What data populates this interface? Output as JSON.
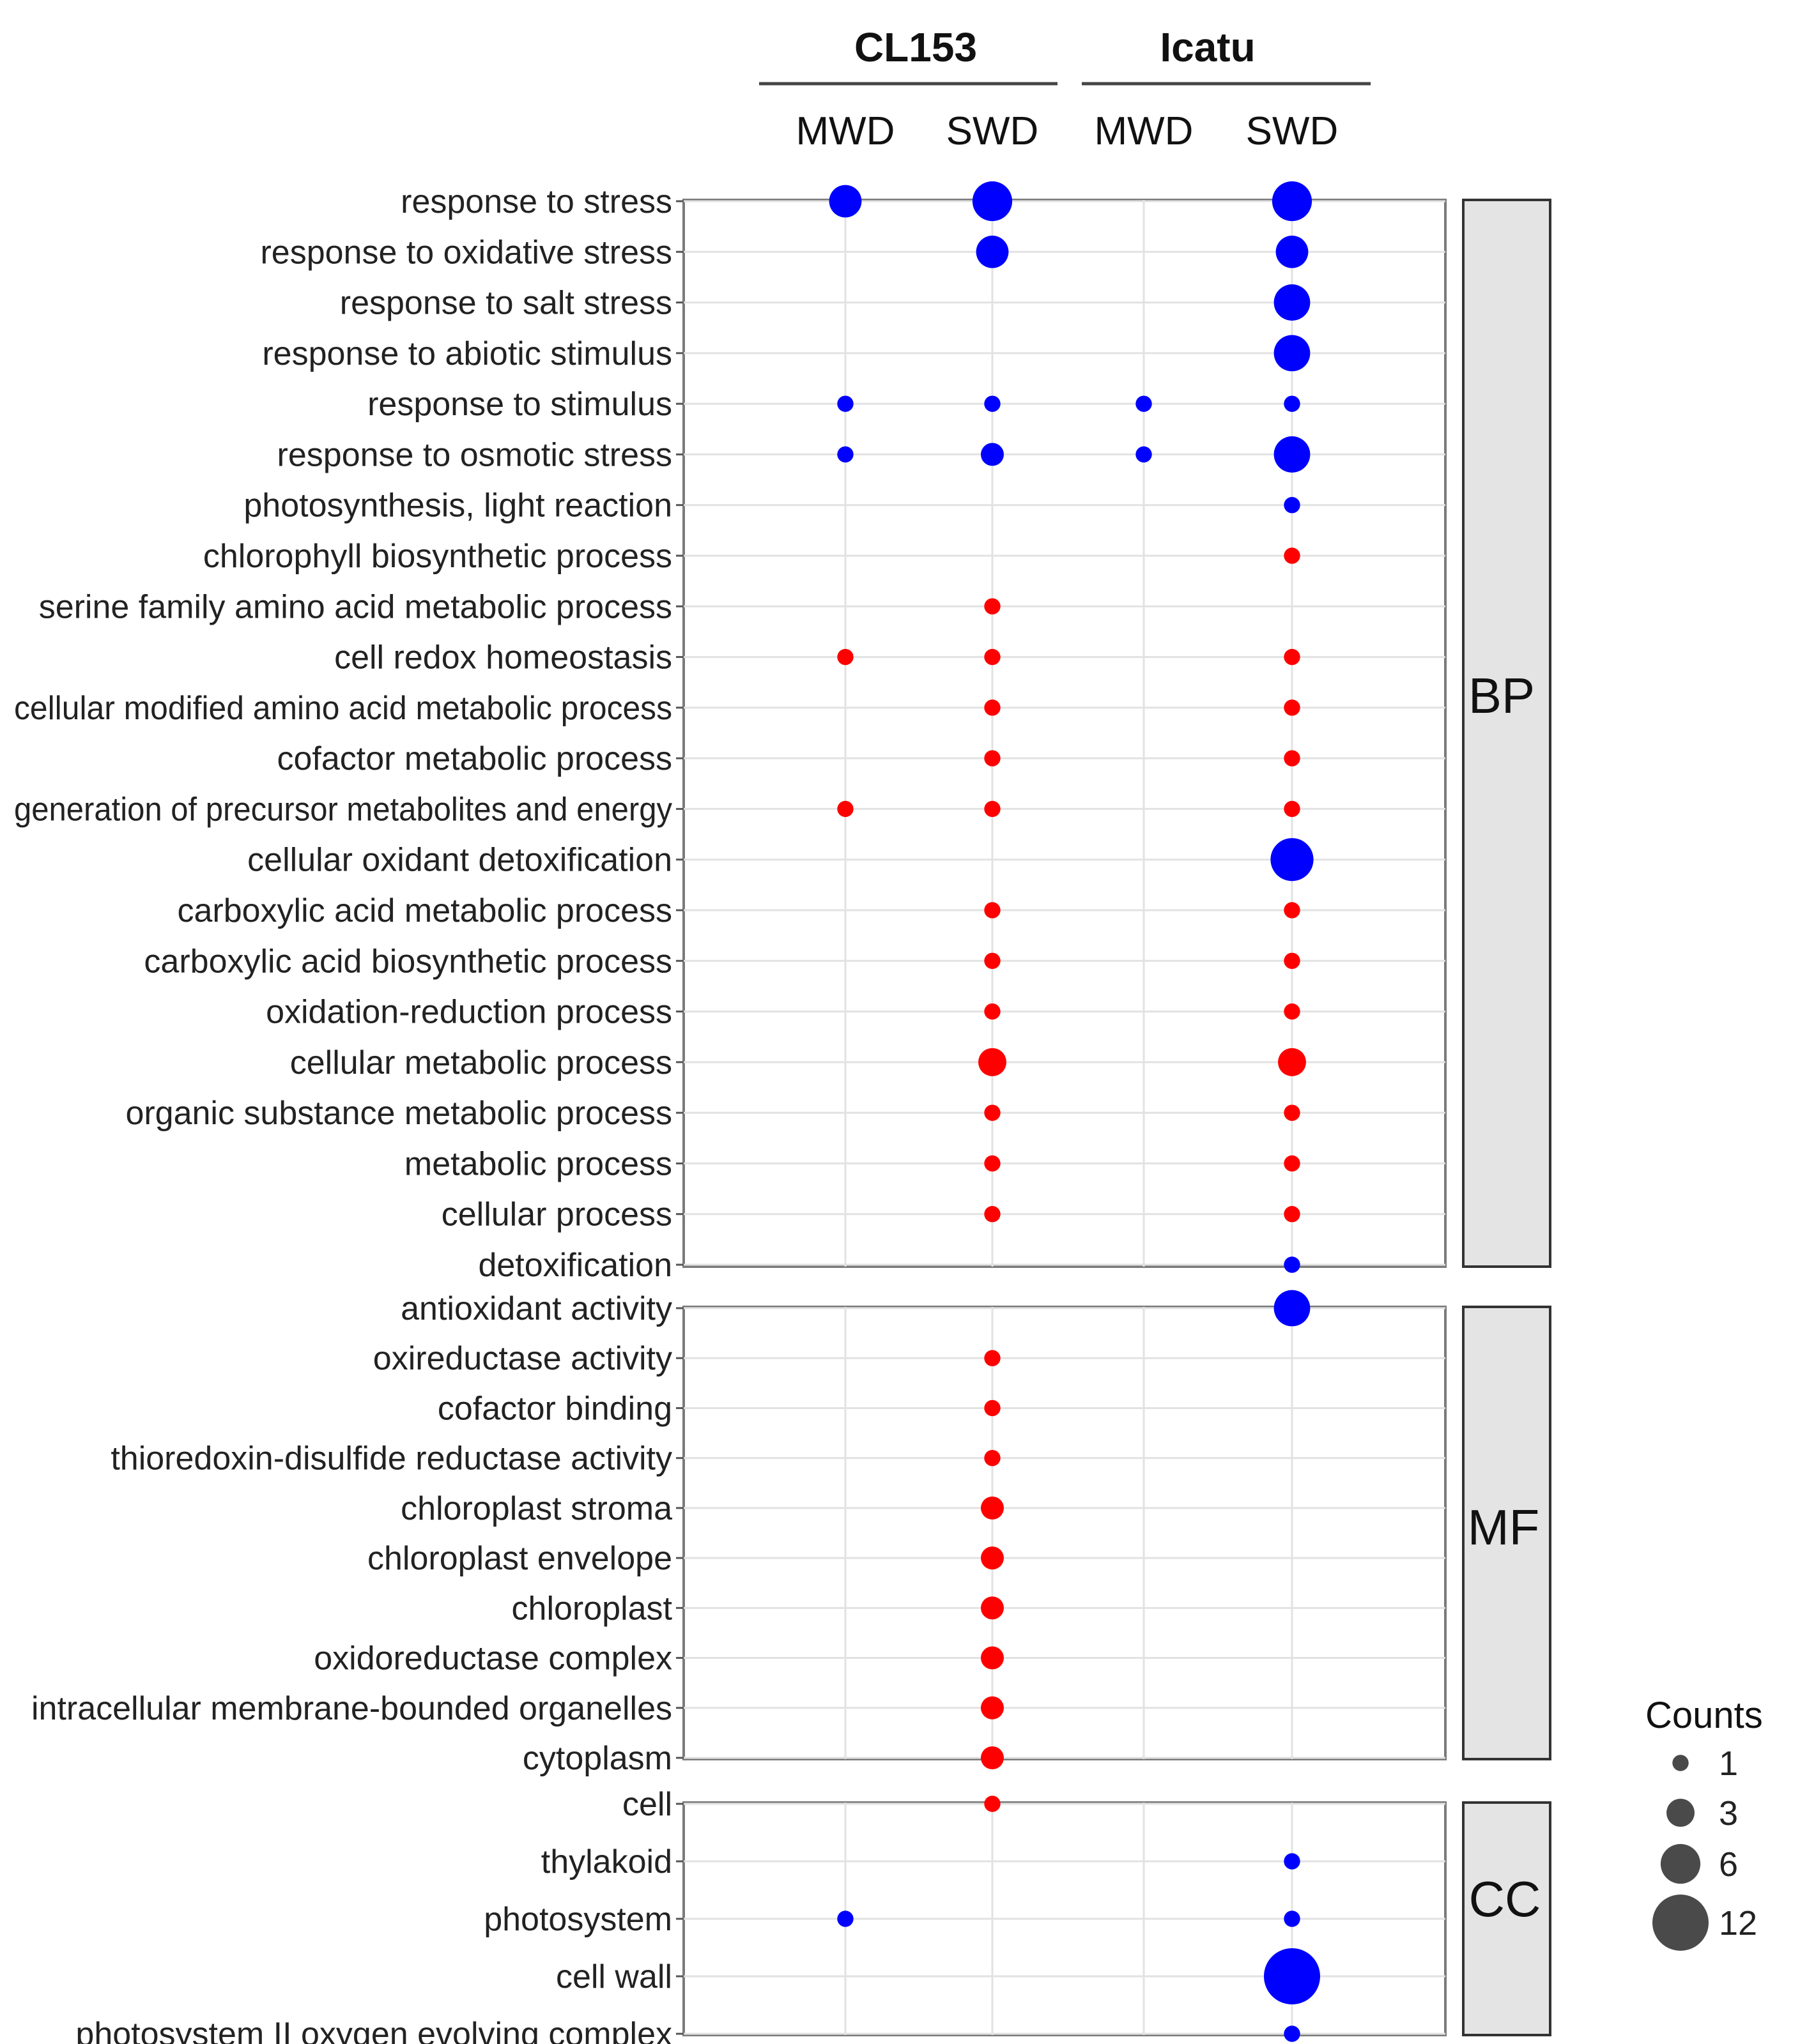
{
  "chart_data": {
    "type": "scatter",
    "title": "",
    "xlabel": "",
    "ylabel": "",
    "groups": [
      {
        "name": "CL153",
        "conditions": [
          "MWD",
          "SWD"
        ]
      },
      {
        "name": "Icatu",
        "conditions": [
          "MWD",
          "SWD"
        ]
      }
    ],
    "columns": [
      "CL153 MWD",
      "CL153 SWD",
      "Icatu MWD",
      "Icatu SWD"
    ],
    "column_labels": [
      "MWD",
      "SWD",
      "MWD",
      "SWD"
    ],
    "legend": {
      "title": "Counts",
      "entries": [
        {
          "label": "1",
          "value": 1
        },
        {
          "label": "3",
          "value": 3
        },
        {
          "label": "6",
          "value": 6
        },
        {
          "label": "12",
          "value": 12
        }
      ],
      "position": "right"
    },
    "colors": {
      "up": "#ff0000",
      "down": "#0000ff"
    },
    "facets": [
      {
        "name": "BP",
        "terms": [
          "response to stress",
          "response to oxidative stress",
          "response to salt stress",
          "response to abiotic stimulus",
          "response to stimulus",
          "response to osmotic stress",
          "photosynthesis, light reaction",
          "chlorophyll biosynthetic process",
          "serine family amino acid metabolic process",
          "cell redox homeostasis",
          "cellular modified amino acid metabolic process",
          "cofactor metabolic process",
          "generation of precursor metabolites and energy",
          "cellular oxidant detoxification",
          "carboxylic acid metabolic process",
          "carboxylic acid biosynthetic process",
          "oxidation-reduction process",
          "cellular metabolic process",
          "organic substance metabolic process",
          "metabolic process",
          "cellular process",
          "detoxification"
        ]
      },
      {
        "name": "MF",
        "terms": [
          "antioxidant activity",
          "oxireductase activity",
          "cofactor binding",
          "thioredoxin-disulfide reductase activity",
          "chloroplast stroma",
          "chloroplast envelope",
          "chloroplast",
          "oxidoreductase complex",
          "intracellular membrane-bounded organelles",
          "cytoplasm"
        ]
      },
      {
        "name": "CC",
        "terms": [
          "cell",
          "thylakoid",
          "photosystem",
          "cell wall",
          "photosystem II oxygen evolving complex"
        ]
      }
    ],
    "points": [
      {
        "term": "response to stress",
        "column": "CL153 MWD",
        "count": 4,
        "direction": "down"
      },
      {
        "term": "response to stress",
        "column": "CL153 SWD",
        "count": 6,
        "direction": "down"
      },
      {
        "term": "response to stress",
        "column": "Icatu SWD",
        "count": 6,
        "direction": "down"
      },
      {
        "term": "response to oxidative stress",
        "column": "CL153 SWD",
        "count": 4,
        "direction": "down"
      },
      {
        "term": "response to oxidative stress",
        "column": "Icatu SWD",
        "count": 4,
        "direction": "down"
      },
      {
        "term": "response to salt stress",
        "column": "Icatu SWD",
        "count": 5,
        "direction": "down"
      },
      {
        "term": "response to abiotic stimulus",
        "column": "Icatu SWD",
        "count": 5,
        "direction": "down"
      },
      {
        "term": "response to stimulus",
        "column": "CL153 MWD",
        "count": 1,
        "direction": "down"
      },
      {
        "term": "response to stimulus",
        "column": "CL153 SWD",
        "count": 1,
        "direction": "down"
      },
      {
        "term": "response to stimulus",
        "column": "Icatu MWD",
        "count": 1,
        "direction": "down"
      },
      {
        "term": "response to stimulus",
        "column": "Icatu SWD",
        "count": 1,
        "direction": "down"
      },
      {
        "term": "response to osmotic stress",
        "column": "CL153 MWD",
        "count": 1,
        "direction": "down"
      },
      {
        "term": "response to osmotic stress",
        "column": "CL153 SWD",
        "count": 2,
        "direction": "down"
      },
      {
        "term": "response to osmotic stress",
        "column": "Icatu MWD",
        "count": 1,
        "direction": "down"
      },
      {
        "term": "response to osmotic stress",
        "column": "Icatu SWD",
        "count": 5,
        "direction": "down"
      },
      {
        "term": "photosynthesis, light reaction",
        "column": "Icatu SWD",
        "count": 1,
        "direction": "down"
      },
      {
        "term": "chlorophyll biosynthetic process",
        "column": "Icatu SWD",
        "count": 1,
        "direction": "up"
      },
      {
        "term": "serine family amino acid metabolic process",
        "column": "CL153 SWD",
        "count": 1,
        "direction": "up"
      },
      {
        "term": "cell redox homeostasis",
        "column": "CL153 MWD",
        "count": 1,
        "direction": "up"
      },
      {
        "term": "cell redox homeostasis",
        "column": "CL153 SWD",
        "count": 1,
        "direction": "up"
      },
      {
        "term": "cell redox homeostasis",
        "column": "Icatu SWD",
        "count": 1,
        "direction": "up"
      },
      {
        "term": "cellular modified amino acid metabolic process",
        "column": "CL153 SWD",
        "count": 1,
        "direction": "up"
      },
      {
        "term": "cellular modified amino acid metabolic process",
        "column": "Icatu SWD",
        "count": 1,
        "direction": "up"
      },
      {
        "term": "cofactor metabolic process",
        "column": "CL153 SWD",
        "count": 1,
        "direction": "up"
      },
      {
        "term": "cofactor metabolic process",
        "column": "Icatu SWD",
        "count": 1,
        "direction": "up"
      },
      {
        "term": "generation of precursor metabolites and energy",
        "column": "CL153 MWD",
        "count": 1,
        "direction": "up"
      },
      {
        "term": "generation of precursor metabolites and energy",
        "column": "CL153 SWD",
        "count": 1,
        "direction": "up"
      },
      {
        "term": "generation of precursor metabolites and energy",
        "column": "Icatu SWD",
        "count": 1,
        "direction": "up"
      },
      {
        "term": "cellular oxidant detoxification",
        "column": "Icatu SWD",
        "count": 7,
        "direction": "down"
      },
      {
        "term": "carboxylic acid metabolic process",
        "column": "CL153 SWD",
        "count": 1,
        "direction": "up"
      },
      {
        "term": "carboxylic acid metabolic process",
        "column": "Icatu SWD",
        "count": 1,
        "direction": "up"
      },
      {
        "term": "carboxylic acid biosynthetic process",
        "column": "CL153 SWD",
        "count": 1,
        "direction": "up"
      },
      {
        "term": "carboxylic acid biosynthetic process",
        "column": "Icatu SWD",
        "count": 1,
        "direction": "up"
      },
      {
        "term": "oxidation-reduction process",
        "column": "CL153 SWD",
        "count": 1,
        "direction": "up"
      },
      {
        "term": "oxidation-reduction process",
        "column": "Icatu SWD",
        "count": 1,
        "direction": "up"
      },
      {
        "term": "cellular metabolic process",
        "column": "CL153 SWD",
        "count": 3,
        "direction": "up"
      },
      {
        "term": "cellular metabolic process",
        "column": "Icatu SWD",
        "count": 3,
        "direction": "up"
      },
      {
        "term": "organic substance metabolic process",
        "column": "CL153 SWD",
        "count": 1,
        "direction": "up"
      },
      {
        "term": "organic substance metabolic process",
        "column": "Icatu SWD",
        "count": 1,
        "direction": "up"
      },
      {
        "term": "metabolic process",
        "column": "CL153 SWD",
        "count": 1,
        "direction": "up"
      },
      {
        "term": "metabolic process",
        "column": "Icatu SWD",
        "count": 1,
        "direction": "up"
      },
      {
        "term": "cellular process",
        "column": "CL153 SWD",
        "count": 1,
        "direction": "up"
      },
      {
        "term": "cellular process",
        "column": "Icatu SWD",
        "count": 1,
        "direction": "up"
      },
      {
        "term": "detoxification",
        "column": "Icatu SWD",
        "count": 1,
        "direction": "down"
      },
      {
        "term": "antioxidant activity",
        "column": "Icatu SWD",
        "count": 5,
        "direction": "down"
      },
      {
        "term": "oxireductase activity",
        "column": "CL153 SWD",
        "count": 1,
        "direction": "up"
      },
      {
        "term": "cofactor binding",
        "column": "CL153 SWD",
        "count": 1,
        "direction": "up"
      },
      {
        "term": "thioredoxin-disulfide reductase activity",
        "column": "CL153 SWD",
        "count": 1,
        "direction": "up"
      },
      {
        "term": "chloroplast stroma",
        "column": "CL153 SWD",
        "count": 2,
        "direction": "up"
      },
      {
        "term": "chloroplast envelope",
        "column": "CL153 SWD",
        "count": 2,
        "direction": "up"
      },
      {
        "term": "chloroplast",
        "column": "CL153 SWD",
        "count": 2,
        "direction": "up"
      },
      {
        "term": "oxidoreductase complex",
        "column": "CL153 SWD",
        "count": 2,
        "direction": "up"
      },
      {
        "term": "intracellular membrane-bounded organelles",
        "column": "CL153 SWD",
        "count": 2,
        "direction": "up"
      },
      {
        "term": "cytoplasm",
        "column": "CL153 SWD",
        "count": 2,
        "direction": "up"
      },
      {
        "term": "cell",
        "column": "CL153 SWD",
        "count": 1,
        "direction": "up"
      },
      {
        "term": "thylakoid",
        "column": "Icatu SWD",
        "count": 1,
        "direction": "down"
      },
      {
        "term": "photosystem",
        "column": "CL153 MWD",
        "count": 1,
        "direction": "down"
      },
      {
        "term": "photosystem",
        "column": "Icatu SWD",
        "count": 1,
        "direction": "down"
      },
      {
        "term": "cell wall",
        "column": "Icatu SWD",
        "count": 12,
        "direction": "down"
      },
      {
        "term": "photosystem II oxygen evolving complex",
        "column": "Icatu SWD",
        "count": 1,
        "direction": "down"
      }
    ]
  }
}
